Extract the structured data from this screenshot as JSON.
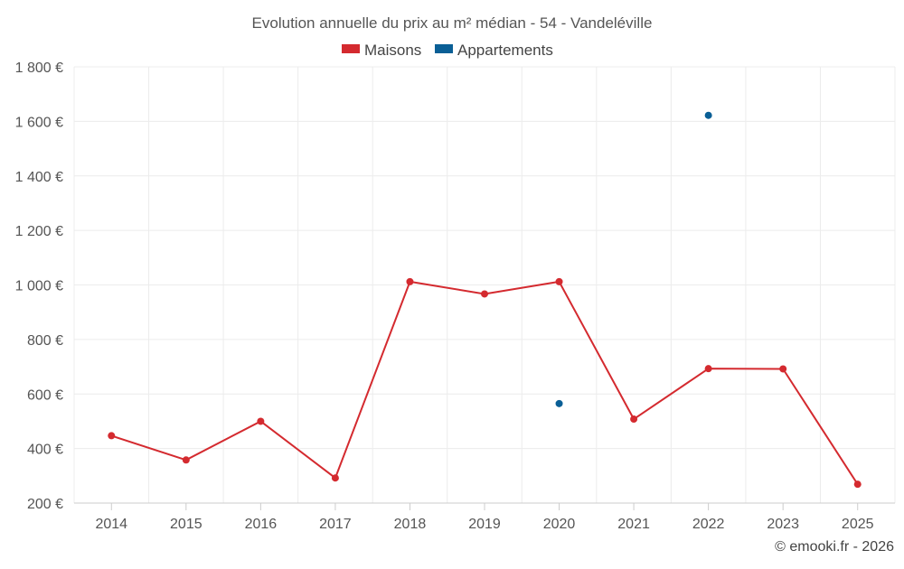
{
  "colors": {
    "maisons": "#d42a2f",
    "appartements": "#0a5f96"
  },
  "chart_data": {
    "type": "line",
    "title": "Evolution annuelle du prix au m² médian - 54 - Vandeléville",
    "categories": [
      "2014",
      "2015",
      "2016",
      "2017",
      "2018",
      "2019",
      "2020",
      "2021",
      "2022",
      "2023",
      "2025"
    ],
    "series": [
      {
        "name": "Maisons",
        "color": "#d42a2f",
        "values": [
          447,
          358,
          500,
          292,
          1012,
          967,
          1012,
          508,
          693,
          692,
          269
        ]
      },
      {
        "name": "Appartements",
        "color": "#0a5f96",
        "values": [
          null,
          null,
          null,
          null,
          null,
          null,
          565,
          null,
          1622,
          null,
          null
        ]
      }
    ],
    "yticks": [
      "200 €",
      "400 €",
      "600 €",
      "800 €",
      "1 000 €",
      "1 200 €",
      "1 400 €",
      "1 600 €",
      "1 800 €"
    ],
    "ytick_values": [
      200,
      400,
      600,
      800,
      1000,
      1200,
      1400,
      1600,
      1800
    ],
    "ylim": [
      200,
      1800
    ],
    "xlabel": "",
    "ylabel": "",
    "grid": true,
    "legend_position": "top-center",
    "credit": "© emooki.fr - 2026"
  }
}
